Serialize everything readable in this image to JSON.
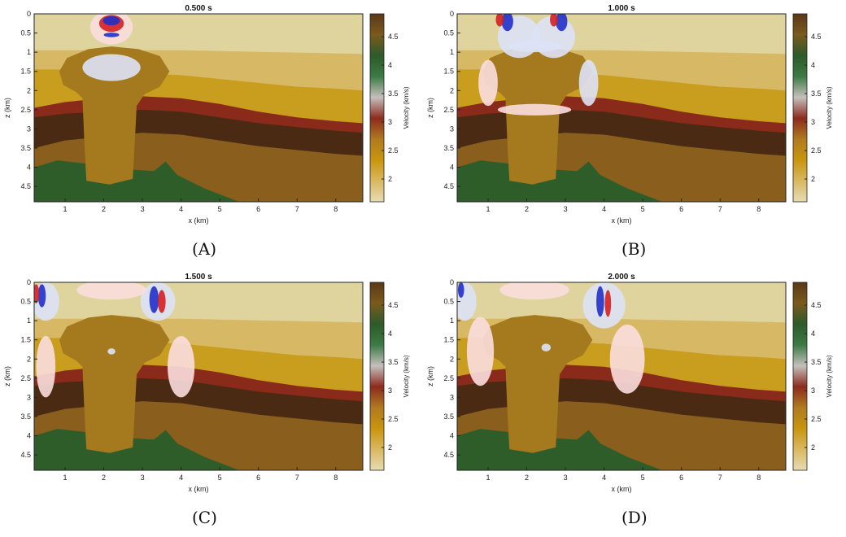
{
  "figure": {
    "panels": [
      {
        "id": "A",
        "title": "0.500 s",
        "caption": "(A)",
        "time_s": 0.5
      },
      {
        "id": "B",
        "title": "1.000 s",
        "caption": "(B)",
        "time_s": 1.0
      },
      {
        "id": "C",
        "title": "1.500 s",
        "caption": "(C)",
        "time_s": 1.5
      },
      {
        "id": "D",
        "title": "2.000 s",
        "caption": "(D)",
        "time_s": 2.0
      }
    ]
  },
  "chart_data": {
    "type": "heatmap",
    "xlabel": "x (km)",
    "ylabel": "z (km)",
    "colorbar_label": "Velocity (km/s)",
    "xlim": [
      0.2,
      8.7
    ],
    "ylim": [
      4.9,
      0
    ],
    "xticks": [
      1,
      2,
      3,
      4,
      5,
      6,
      7,
      8
    ],
    "xtick_labels": [
      "1",
      "2",
      "3",
      "4",
      "5",
      "6",
      "7",
      "8"
    ],
    "yticks": [
      0,
      0.5,
      1,
      1.5,
      2,
      2.5,
      3,
      3.5,
      4,
      4.5
    ],
    "ytick_labels": [
      "0",
      "0.5",
      "1",
      "1.5",
      "2",
      "2.5",
      "3",
      "3.5",
      "4",
      "4.5"
    ],
    "colorbar_range": [
      1.6,
      4.9
    ],
    "colorbar_ticks": [
      2,
      2.5,
      3,
      3.5,
      4,
      4.5
    ],
    "colorbar_tick_labels": [
      "2",
      "2.5",
      "3",
      "3.5",
      "4",
      "4.5"
    ],
    "colorbar_colors": [
      "#e6dcb4",
      "#d9b860",
      "#c9950e",
      "#b07a20",
      "#8c2b1e",
      "#c5c0bc",
      "#3c7a44",
      "#2d5a2a",
      "#7a5a1c",
      "#5a3818"
    ],
    "layer_colors": {
      "layer1": "#dfd49d",
      "layer2": "#d7b865",
      "layer3": "#c99d1e",
      "layer4": "#8a2a1a",
      "layer5": "#4a2a12",
      "layer6": "#8a5e1c",
      "basement": "#2f5d2a",
      "salt": "#a57a1e"
    },
    "wave_colors": {
      "positive": "#d42020",
      "negative": "#2030c8",
      "light_pos": "#fbdede",
      "light_neg": "#dde2f6"
    },
    "panels": [
      {
        "title": "0.500 s",
        "time_s": 0.5
      },
      {
        "title": "1.000 s",
        "time_s": 1.0
      },
      {
        "title": "1.500 s",
        "time_s": 1.5
      },
      {
        "title": "2.000 s",
        "time_s": 2.0
      }
    ]
  }
}
